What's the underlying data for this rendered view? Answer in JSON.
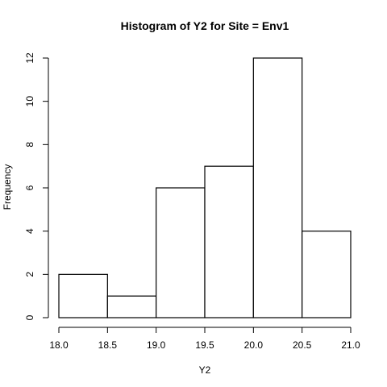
{
  "chart_data": {
    "type": "bar",
    "title": "Histogram of Y2 for Site = Env1",
    "xlabel": "Y2",
    "ylabel": "Frequency",
    "bins": [
      {
        "x0": 18.0,
        "x1": 18.5,
        "count": 2
      },
      {
        "x0": 18.5,
        "x1": 19.0,
        "count": 1
      },
      {
        "x0": 19.0,
        "x1": 19.5,
        "count": 6
      },
      {
        "x0": 19.5,
        "x1": 20.0,
        "count": 7
      },
      {
        "x0": 20.0,
        "x1": 20.5,
        "count": 12
      },
      {
        "x0": 20.5,
        "x1": 21.0,
        "count": 4
      }
    ],
    "xlim": [
      18.0,
      21.0
    ],
    "ylim": [
      0,
      12
    ],
    "xticks": [
      "18.0",
      "18.5",
      "19.0",
      "19.5",
      "20.0",
      "20.5",
      "21.0"
    ],
    "yticks": [
      "0",
      "2",
      "4",
      "6",
      "8",
      "10",
      "12"
    ],
    "grid": false
  }
}
